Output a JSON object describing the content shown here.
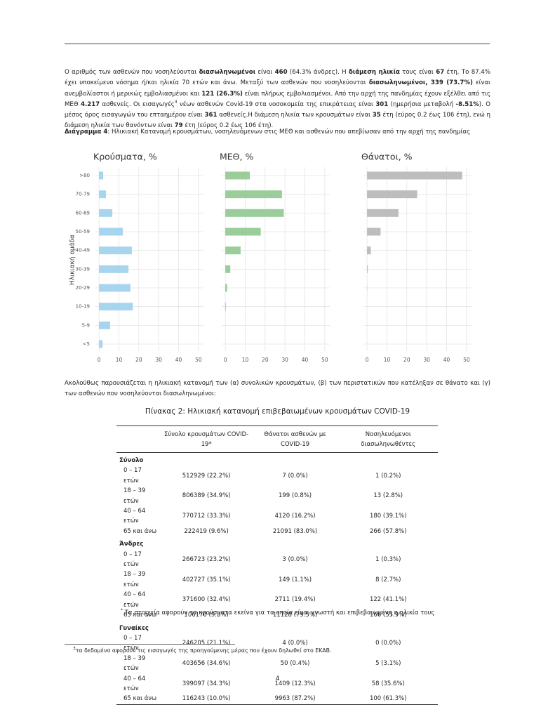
{
  "paragraph1": {
    "runs": [
      {
        "text": "Ο αριθμός των ασθενών που νοσηλεύονται "
      },
      {
        "text": "διασωληνωμένοι",
        "bold": true
      },
      {
        "text": " είναι "
      },
      {
        "text": "460",
        "bold": true
      },
      {
        "text": " (64.3% άνδρες).  Η "
      },
      {
        "text": "διάμεση ηλικία",
        "bold": true
      },
      {
        "text": " τους είναι "
      },
      {
        "text": "67",
        "bold": true
      },
      {
        "text": " έτη.  Το 87.4% έχει υποκείμενο νόσημα ή/και ηλικία 70 ετών και άνω.  Μεταξύ των ασθενών που νοσηλεύονται "
      },
      {
        "text": "διασωληνωμένοι, 339 (73.7%)",
        "bold": true
      },
      {
        "text": " είναι ανεμβολίαστοι ή μερικώς εμβολιασμένοι και "
      },
      {
        "text": "121 (26.3%)",
        "bold": true
      },
      {
        "text": " είναι πλήρως εμβολιασμένοι. Από την αρχή της πανδημίας έχουν εξέλθει από τις ΜΕΘ "
      },
      {
        "text": "4.217",
        "bold": true
      },
      {
        "text": " ασθενείς. Οι εισαγωγές"
      },
      {
        "text": "3",
        "sup": true
      },
      {
        "text": " νέων ασθενών Covid-19 στα νοσοκομεία της επικράτειας είναι "
      },
      {
        "text": "301",
        "bold": true
      },
      {
        "text": " (ημερήσια μεταβολή "
      },
      {
        "text": "-8.51%",
        "bold": true
      },
      {
        "text": ").  Ο μέσος όρος εισαγωγών του επταημέρου είναι "
      },
      {
        "text": "361",
        "bold": true
      },
      {
        "text": " ασθενείς.Η διάμεση ηλικία των κρουσμάτων είναι "
      },
      {
        "text": "35",
        "bold": true
      },
      {
        "text": " έτη (εύρος 0.2 έως 106 έτη), ενώ η διάμεση ηλικία των θανόντων είναι "
      },
      {
        "text": "79",
        "bold": true
      },
      {
        "text": " έτη (εύρος 0.2 έως 106 έτη)."
      }
    ]
  },
  "figure_caption": {
    "runs": [
      {
        "text": "Διάγραμμα 4",
        "bold": true
      },
      {
        "text": ": Ηλικιακή Κατανομή κρουσμάτων, νοσηλευόμενων στις ΜΕΘ και ασθενών που απεβίωσαν από την αρχή της πανδημίας"
      }
    ]
  },
  "chart_data": [
    {
      "type": "bar",
      "orientation": "horizontal",
      "title": "Κρούσματα, %",
      "y_label": "Ηλικιακή ομάδα",
      "categories": [
        ">80",
        "70-79",
        "60-69",
        "50-59",
        "40-49",
        "30-39",
        "20-29",
        "10-19",
        "5-9",
        "<5"
      ],
      "values": [
        2.1,
        3.5,
        6.7,
        12,
        16.5,
        14.8,
        15.8,
        17,
        5.6,
        1.8
      ],
      "color": "#a8d5ee",
      "xlim": [
        -1.8,
        52.5
      ],
      "xticks": [
        0,
        10,
        20,
        30,
        40,
        50
      ],
      "grid": true
    },
    {
      "type": "bar",
      "orientation": "horizontal",
      "title": "ΜΕΘ, %",
      "categories": [
        ">80",
        "70-79",
        "60-69",
        "50-59",
        "40-49",
        "30-39",
        "20-29",
        "10-19",
        "5-9",
        "<5"
      ],
      "values": [
        12.3,
        28.5,
        29.4,
        17.8,
        7.7,
        2.5,
        0.9,
        0.3,
        0,
        0
      ],
      "color": "#9acd9a",
      "xlim": [
        -1.8,
        52.5
      ],
      "xticks": [
        0,
        10,
        20,
        30,
        40,
        50
      ],
      "grid": true
    },
    {
      "type": "bar",
      "orientation": "horizontal",
      "title": "Θάνατοι, %",
      "categories": [
        ">80",
        "70-79",
        "60-69",
        "50-59",
        "40-49",
        "30-39",
        "20-29",
        "10-19",
        "5-9",
        "<5"
      ],
      "values": [
        47.8,
        25.2,
        15.8,
        6.8,
        1.9,
        0.4,
        0.1,
        0,
        0,
        0
      ],
      "color": "#bdbdbd",
      "xlim": [
        -1.8,
        52.5
      ],
      "xticks": [
        0,
        10,
        20,
        30,
        40,
        50
      ],
      "grid": true
    }
  ],
  "paragraph2": "Ακολούθως παρουσιάζεται η ηλικιακή κατανομή των (α) συνολικών κρουσμάτων, (β) των περιστατικών που κατέληξαν σε θάνατο και (γ) των ασθενών που νοσηλεύονται διασωληνωμένοι:",
  "table": {
    "title": "Πίνακας 2: Ηλικιακή κατανομή επιβεβαιωμένων κρουσμάτων COVID-19",
    "columns": [
      "Σύνολο κρουσμάτων COVID-19*",
      "Θάνατοι ασθενών με COVID-19",
      "Νοσηλευόμενοι διασωληνωθέντες"
    ],
    "groups": [
      {
        "label": "Σύνολο",
        "rows": [
          [
            "0 – 17 ετών",
            "512929 (22.2%)",
            "7 (0.0%)",
            "1 (0.2%)"
          ],
          [
            "18 – 39 ετών",
            "806389 (34.9%)",
            "199 (0.8%)",
            "13 (2.8%)"
          ],
          [
            "40 – 64 ετών",
            "770712 (33.3%)",
            "4120 (16.2%)",
            "180 (39.1%)"
          ],
          [
            "65 και άνω",
            "222419 (9.6%)",
            "21091 (83.0%)",
            "266 (57.8%)"
          ]
        ]
      },
      {
        "label": "Άνδρες",
        "rows": [
          [
            "0 – 17 ετών",
            "266723 (23.2%)",
            "3 (0.0%)",
            "1 (0.3%)"
          ],
          [
            "18 – 39 ετών",
            "402727 (35.1%)",
            "149 (1.1%)",
            "8 (2.7%)"
          ],
          [
            "40 – 64 ετών",
            "371600 (32.4%)",
            "2711 (19.4%)",
            "122 (41.1%)"
          ],
          [
            "65 και άνω",
            "106170 (9.3%)",
            "11128 (79.5%)",
            "166 (55.9%)"
          ]
        ]
      },
      {
        "label": "Γυναίκες",
        "rows": [
          [
            "0 – 17 ετών",
            "246205 (21.1%)",
            "4 (0.0%)",
            "0 (0.0%)"
          ],
          [
            "18 – 39 ετών",
            "403656 (34.6%)",
            "50 (0.4%)",
            "5 (3.1%)"
          ],
          [
            "40 – 64 ετών",
            "399097 (34.3%)",
            "1409 (12.3%)",
            "58 (35.6%)"
          ],
          [
            "65 και άνω",
            "116243 (10.0%)",
            "9963 (87.2%)",
            "100 (61.3%)"
          ]
        ]
      }
    ],
    "note": {
      "runs": [
        {
          "text": "*",
          "sup": true
        },
        {
          "text": " Τα στοιχεία αφορούν τα κρούσματα εκείνα για τα οποία είναι γνωστή και επιβεβαιωμένη η ηλικία τους"
        }
      ]
    }
  },
  "footnote": {
    "runs": [
      {
        "text": "3",
        "sup": true
      },
      {
        "text": "τα δεδομένα αφορούν τις εισαγωγές της προηγούμενης μέρας που έχουν δηλωθεί στο ΕΚΑΒ."
      }
    ]
  },
  "page_number": "4"
}
